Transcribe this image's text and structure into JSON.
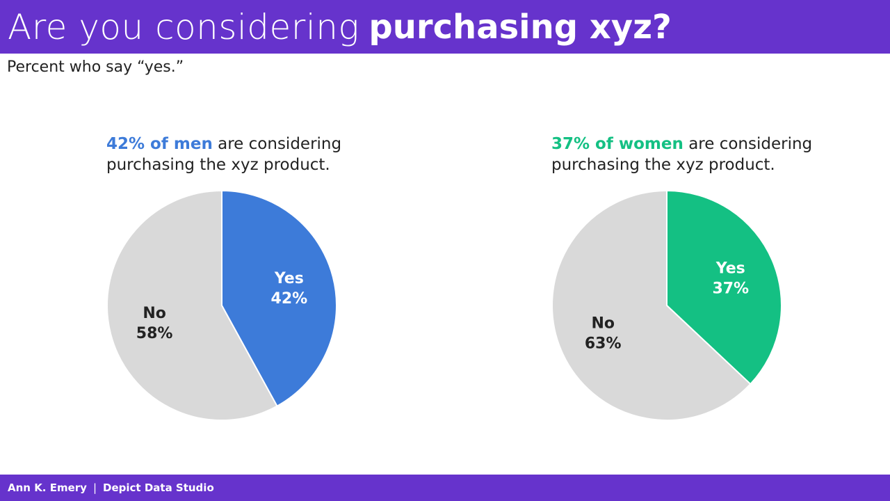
{
  "title": {
    "light": "Are you considering",
    "bold": "purchasing xyz?"
  },
  "subtitle": "Percent who say “yes.”",
  "colors": {
    "brand": "#6633cc",
    "men": "#3d7bd9",
    "women": "#14c083",
    "no": "#d9d9d9"
  },
  "panels": [
    {
      "caption_highlight": "42% of men",
      "caption_rest_1": "are considering",
      "caption_rest_2": "purchasing the xyz product."
    },
    {
      "caption_highlight": "37% of women",
      "caption_rest_1": "are considering",
      "caption_rest_2": "purchasing the xyz product."
    }
  ],
  "chart_data": [
    {
      "type": "pie",
      "title": "",
      "slices": [
        {
          "label": "Yes",
          "value": 42,
          "display": "42%",
          "color": "#3d7bd9",
          "label_color": "#ffffff"
        },
        {
          "label": "No",
          "value": 58,
          "display": "58%",
          "color": "#d9d9d9",
          "label_color": "#222222"
        }
      ]
    },
    {
      "type": "pie",
      "title": "",
      "slices": [
        {
          "label": "Yes",
          "value": 37,
          "display": "37%",
          "color": "#14c083",
          "label_color": "#ffffff"
        },
        {
          "label": "No",
          "value": 63,
          "display": "63%",
          "color": "#d9d9d9",
          "label_color": "#222222"
        }
      ]
    }
  ],
  "footer": {
    "author": "Ann K. Emery",
    "separator": "|",
    "studio": "Depict Data Studio"
  }
}
